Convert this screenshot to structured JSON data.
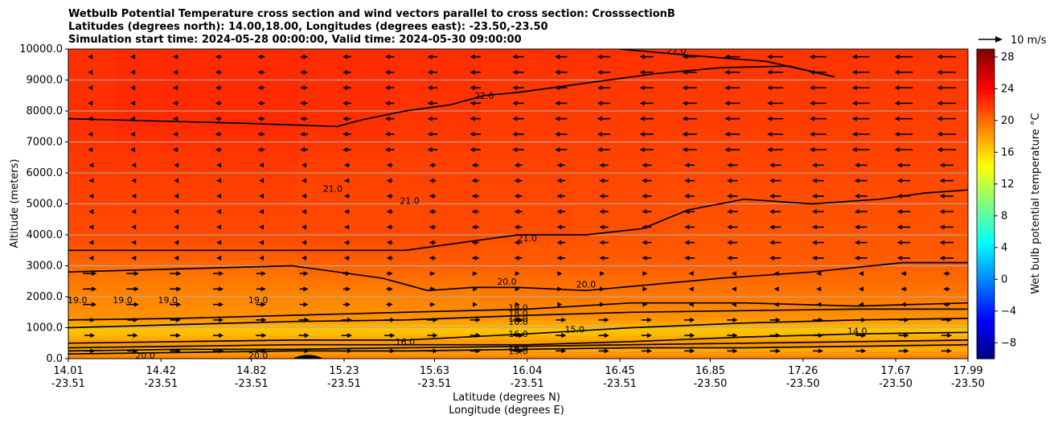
{
  "chart_data": {
    "type": "heatmap",
    "title_lines": [
      "Wetbulb Potential Temperature cross section and wind vectors parallel to cross section: CrosssectionB",
      "Latitudes (degrees north): 14.00,18.00, Longitudes (degrees east): -23.50,-23.50",
      "Simulation start time: 2024-05-28 00:00:00, Valid time: 2024-05-30 09:00:00"
    ],
    "xlabel_line1": "Latitude (degrees N)",
    "xlabel_line2": "Longitude (degrees E)",
    "ylabel": "Altitude (meters)",
    "x_ticks": [
      {
        "lat": "14.01",
        "lon": "-23.51"
      },
      {
        "lat": "14.42",
        "lon": "-23.51"
      },
      {
        "lat": "14.82",
        "lon": "-23.51"
      },
      {
        "lat": "15.23",
        "lon": "-23.51"
      },
      {
        "lat": "15.63",
        "lon": "-23.51"
      },
      {
        "lat": "16.04",
        "lon": "-23.51"
      },
      {
        "lat": "16.45",
        "lon": "-23.51"
      },
      {
        "lat": "16.85",
        "lon": "-23.50"
      },
      {
        "lat": "17.26",
        "lon": "-23.50"
      },
      {
        "lat": "17.67",
        "lon": "-23.50"
      },
      {
        "lat": "17.99",
        "lon": "-23.50"
      }
    ],
    "y_ticks": [
      "0.0",
      "1000.0",
      "2000.0",
      "3000.0",
      "4000.0",
      "5000.0",
      "6000.0",
      "7000.0",
      "8000.0",
      "9000.0",
      "10000.0"
    ],
    "ylim": [
      0,
      10000
    ],
    "grid": "horizontal",
    "colorbar": {
      "label": "Wet bulb potential temperature °C",
      "range": [
        -10,
        29
      ],
      "ticks": [
        "−8",
        "−4",
        "0",
        "4",
        "8",
        "12",
        "16",
        "20",
        "24",
        "28"
      ],
      "colormap": "jet"
    },
    "quiver_key": "10 m/s",
    "contour_labels": [
      "22.0",
      "22.0",
      "21.0",
      "21.0",
      "21.0",
      "20.0",
      "20.0",
      "19.0",
      "19.0",
      "19.0",
      "19.0",
      "19.0",
      "18.0",
      "18.0",
      "16.0",
      "16.0",
      "16.0",
      "16.0",
      "15.0",
      "14.0",
      "20.0",
      "20.0",
      "19.0"
    ],
    "columns": [
      {
        "lat": 14.01,
        "profile": [
          [
            0,
            19.5
          ],
          [
            300,
            17.5
          ],
          [
            500,
            18.5
          ],
          [
            900,
            16.5
          ],
          [
            1300,
            18.5
          ],
          [
            2000,
            19.0
          ],
          [
            2800,
            19.8
          ],
          [
            3300,
            20.5
          ],
          [
            4000,
            21.3
          ],
          [
            6000,
            21.8
          ],
          [
            7500,
            22.3
          ],
          [
            10000,
            22.3
          ]
        ]
      },
      {
        "lat": 14.42,
        "profile": [
          [
            0,
            19.5
          ],
          [
            300,
            17.5
          ],
          [
            500,
            18.5
          ],
          [
            900,
            16.5
          ],
          [
            1300,
            18.5
          ],
          [
            2000,
            19.0
          ],
          [
            2800,
            19.8
          ],
          [
            3300,
            20.5
          ],
          [
            4000,
            21.3
          ],
          [
            6000,
            21.8
          ],
          [
            7500,
            22.5
          ],
          [
            10000,
            22.5
          ]
        ]
      },
      {
        "lat": 14.82,
        "profile": [
          [
            0,
            19.5
          ],
          [
            300,
            17.5
          ],
          [
            500,
            18.5
          ],
          [
            900,
            16.5
          ],
          [
            1300,
            18.5
          ],
          [
            2000,
            19.0
          ],
          [
            2800,
            19.8
          ],
          [
            3300,
            20.5
          ],
          [
            4000,
            21.3
          ],
          [
            6000,
            21.8
          ],
          [
            7500,
            22.5
          ],
          [
            10000,
            22.5
          ]
        ]
      },
      {
        "lat": 15.23,
        "profile": [
          [
            0,
            19.5
          ],
          [
            300,
            17.5
          ],
          [
            500,
            18.5
          ],
          [
            900,
            16.5
          ],
          [
            1300,
            18.5
          ],
          [
            2000,
            19.0
          ],
          [
            2600,
            19.8
          ],
          [
            3100,
            20.5
          ],
          [
            4000,
            21.3
          ],
          [
            6000,
            21.6
          ],
          [
            7500,
            22.3
          ],
          [
            10000,
            22.5
          ]
        ]
      },
      {
        "lat": 15.63,
        "profile": [
          [
            0,
            19.5
          ],
          [
            300,
            17.5
          ],
          [
            500,
            18.5
          ],
          [
            900,
            16.5
          ],
          [
            1300,
            18.5
          ],
          [
            2000,
            19.2
          ],
          [
            2600,
            19.9
          ],
          [
            3100,
            20.6
          ],
          [
            4000,
            21.3
          ],
          [
            6000,
            21.6
          ],
          [
            7700,
            22.1
          ],
          [
            10000,
            22.4
          ]
        ]
      },
      {
        "lat": 16.04,
        "profile": [
          [
            0,
            19.5
          ],
          [
            300,
            17.5
          ],
          [
            500,
            18.5
          ],
          [
            900,
            16.5
          ],
          [
            1300,
            18.5
          ],
          [
            2000,
            19.5
          ],
          [
            2600,
            20.0
          ],
          [
            3100,
            20.6
          ],
          [
            4200,
            21.2
          ],
          [
            6500,
            21.6
          ],
          [
            8400,
            22.0
          ],
          [
            10000,
            22.3
          ]
        ]
      },
      {
        "lat": 16.45,
        "profile": [
          [
            0,
            19.5
          ],
          [
            300,
            17.5
          ],
          [
            500,
            18.5
          ],
          [
            900,
            16.5
          ],
          [
            1300,
            18.5
          ],
          [
            2000,
            19.5
          ],
          [
            2700,
            20.2
          ],
          [
            3300,
            20.7
          ],
          [
            4600,
            21.1
          ],
          [
            6500,
            21.6
          ],
          [
            8700,
            22.0
          ],
          [
            10000,
            22.3
          ]
        ]
      },
      {
        "lat": 16.85,
        "profile": [
          [
            0,
            19.5
          ],
          [
            300,
            17.5
          ],
          [
            500,
            18.5
          ],
          [
            900,
            16.5
          ],
          [
            1300,
            18.5
          ],
          [
            2000,
            19.5
          ],
          [
            2700,
            20.2
          ],
          [
            3300,
            20.7
          ],
          [
            5000,
            21.1
          ],
          [
            6500,
            21.6
          ],
          [
            8900,
            22.0
          ],
          [
            10000,
            22.2
          ]
        ]
      },
      {
        "lat": 17.26,
        "profile": [
          [
            0,
            19.5
          ],
          [
            300,
            17.5
          ],
          [
            500,
            18.5
          ],
          [
            900,
            16.5
          ],
          [
            1300,
            18.5
          ],
          [
            2000,
            19.5
          ],
          [
            2700,
            20.2
          ],
          [
            3300,
            20.7
          ],
          [
            5000,
            21.1
          ],
          [
            6500,
            21.6
          ],
          [
            9100,
            22.0
          ],
          [
            10000,
            22.2
          ]
        ]
      },
      {
        "lat": 17.67,
        "profile": [
          [
            0,
            19.5
          ],
          [
            300,
            17.5
          ],
          [
            500,
            18.5
          ],
          [
            900,
            16.5
          ],
          [
            1300,
            18.5
          ],
          [
            2000,
            19.5
          ],
          [
            2700,
            20.2
          ],
          [
            3400,
            20.7
          ],
          [
            5000,
            21.1
          ],
          [
            6500,
            21.6
          ],
          [
            9300,
            22.0
          ],
          [
            10000,
            22.2
          ]
        ]
      },
      {
        "lat": 17.99,
        "profile": [
          [
            0,
            19.5
          ],
          [
            300,
            17.5
          ],
          [
            500,
            18.5
          ],
          [
            900,
            16.5
          ],
          [
            1300,
            18.5
          ],
          [
            2000,
            19.5
          ],
          [
            2700,
            20.2
          ],
          [
            3500,
            20.7
          ],
          [
            5300,
            21.1
          ],
          [
            6500,
            21.5
          ],
          [
            9300,
            22.0
          ],
          [
            10000,
            22.2
          ]
        ]
      }
    ],
    "contours": [
      {
        "level": 22.0,
        "points": [
          [
            14.01,
            7750
          ],
          [
            14.8,
            7600
          ],
          [
            15.2,
            7500
          ],
          [
            15.3,
            7700
          ],
          [
            15.5,
            8000
          ],
          [
            15.7,
            8200
          ],
          [
            15.85,
            8500
          ],
          [
            16.0,
            8600
          ],
          [
            16.3,
            8900
          ],
          [
            16.6,
            9200
          ],
          [
            16.9,
            9400
          ],
          [
            17.2,
            9450
          ],
          [
            17.4,
            9100
          ],
          [
            17.1,
            9600
          ],
          [
            16.75,
            9800
          ],
          [
            16.45,
            10000
          ]
        ]
      },
      {
        "lat": 0,
        "level": 21.0,
        "points": [
          [
            14.01,
            3500
          ],
          [
            14.5,
            3500
          ],
          [
            15.0,
            3500
          ],
          [
            15.5,
            3500
          ],
          [
            15.7,
            3700
          ],
          [
            15.8,
            3800
          ],
          [
            16.0,
            4000
          ],
          [
            16.3,
            4000
          ],
          [
            16.55,
            4200
          ],
          [
            16.75,
            4800
          ],
          [
            17.0,
            5150
          ],
          [
            17.3,
            5000
          ],
          [
            17.6,
            5150
          ],
          [
            17.8,
            5350
          ],
          [
            17.99,
            5450
          ]
        ]
      },
      {
        "level": 20.0,
        "points": [
          [
            14.01,
            2800
          ],
          [
            14.5,
            2900
          ],
          [
            15.0,
            3000
          ],
          [
            15.4,
            2600
          ],
          [
            15.6,
            2200
          ],
          [
            15.8,
            2300
          ],
          [
            16.0,
            2300
          ],
          [
            16.3,
            2200
          ],
          [
            16.6,
            2400
          ],
          [
            16.9,
            2600
          ],
          [
            17.3,
            2800
          ],
          [
            17.7,
            3100
          ],
          [
            17.99,
            3100
          ]
        ]
      },
      {
        "level": 19.0,
        "points": [
          [
            14.01,
            1250
          ],
          [
            14.5,
            1300
          ],
          [
            15.0,
            1400
          ],
          [
            15.5,
            1500
          ],
          [
            16.04,
            1600
          ],
          [
            16.5,
            1800
          ],
          [
            17.0,
            1800
          ],
          [
            17.5,
            1700
          ],
          [
            17.99,
            1800
          ]
        ]
      },
      {
        "level": 18.0,
        "points": [
          [
            14.01,
            1000
          ],
          [
            14.5,
            1100
          ],
          [
            15.0,
            1200
          ],
          [
            15.5,
            1250
          ],
          [
            16.04,
            1400
          ],
          [
            16.5,
            1500
          ],
          [
            17.0,
            1550
          ],
          [
            17.5,
            1600
          ],
          [
            17.99,
            1600
          ]
        ]
      },
      {
        "level": 16.0,
        "points": [
          [
            14.01,
            500
          ],
          [
            14.5,
            550
          ],
          [
            15.0,
            600
          ],
          [
            15.5,
            600
          ],
          [
            16.04,
            800
          ],
          [
            16.5,
            1000
          ],
          [
            17.0,
            1150
          ],
          [
            17.5,
            1250
          ],
          [
            17.99,
            1300
          ]
        ]
      },
      {
        "level": 16.0,
        "points": [
          [
            14.01,
            350
          ],
          [
            14.5,
            400
          ],
          [
            15.0,
            450
          ],
          [
            15.5,
            450
          ],
          [
            16.04,
            450
          ],
          [
            16.5,
            550
          ],
          [
            17.0,
            700
          ],
          [
            17.5,
            800
          ],
          [
            17.99,
            850
          ]
        ]
      },
      {
        "level": 18.0,
        "points": [
          [
            14.01,
            250
          ],
          [
            14.5,
            300
          ],
          [
            15.0,
            300
          ],
          [
            15.5,
            350
          ],
          [
            16.04,
            400
          ],
          [
            16.5,
            450
          ],
          [
            17.0,
            500
          ],
          [
            17.5,
            550
          ],
          [
            17.99,
            600
          ]
        ]
      },
      {
        "level": 19.0,
        "points": [
          [
            14.01,
            150
          ],
          [
            14.5,
            200
          ],
          [
            15.0,
            250
          ],
          [
            15.5,
            250
          ],
          [
            16.04,
            300
          ],
          [
            16.5,
            350
          ],
          [
            17.0,
            350
          ],
          [
            17.5,
            400
          ],
          [
            17.99,
            450
          ]
        ]
      }
    ]
  }
}
